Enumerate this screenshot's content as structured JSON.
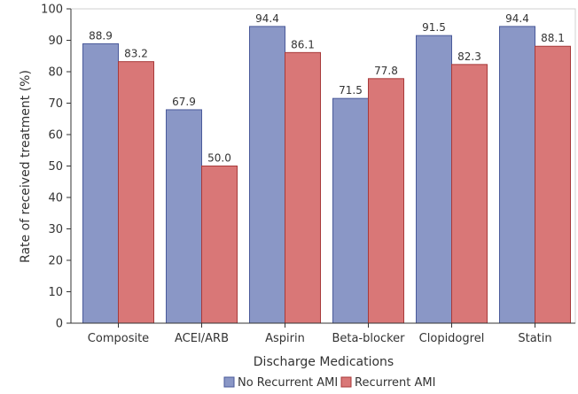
{
  "chart_data": {
    "type": "bar",
    "title": "",
    "xlabel": "Discharge Medications",
    "ylabel": "Rate of received treatment (%)",
    "ylim": [
      0,
      100
    ],
    "yticks": [
      0,
      10,
      20,
      30,
      40,
      50,
      60,
      70,
      80,
      90,
      100
    ],
    "grid": false,
    "legend_position": "bottom",
    "categories": [
      "Composite",
      "ACEI/ARB",
      "Aspirin",
      "Beta-blocker",
      "Clopidogrel",
      "Statin"
    ],
    "series": [
      {
        "name": "No Recurrent AMI",
        "color": "#8a97c6",
        "stroke": "#4a5a9a",
        "values": [
          88.9,
          67.9,
          94.4,
          71.5,
          91.5,
          94.4
        ],
        "labels": [
          "88.9",
          "67.9",
          "94.4",
          "71.5",
          "91.5",
          "94.4"
        ]
      },
      {
        "name": "Recurrent AMI",
        "color": "#d97777",
        "stroke": "#a83a3a",
        "values": [
          83.2,
          50.0,
          86.1,
          77.8,
          82.3,
          88.1
        ],
        "labels": [
          "83.2",
          "50.0",
          "86.1",
          "77.8",
          "82.3",
          "88.1"
        ]
      }
    ]
  }
}
